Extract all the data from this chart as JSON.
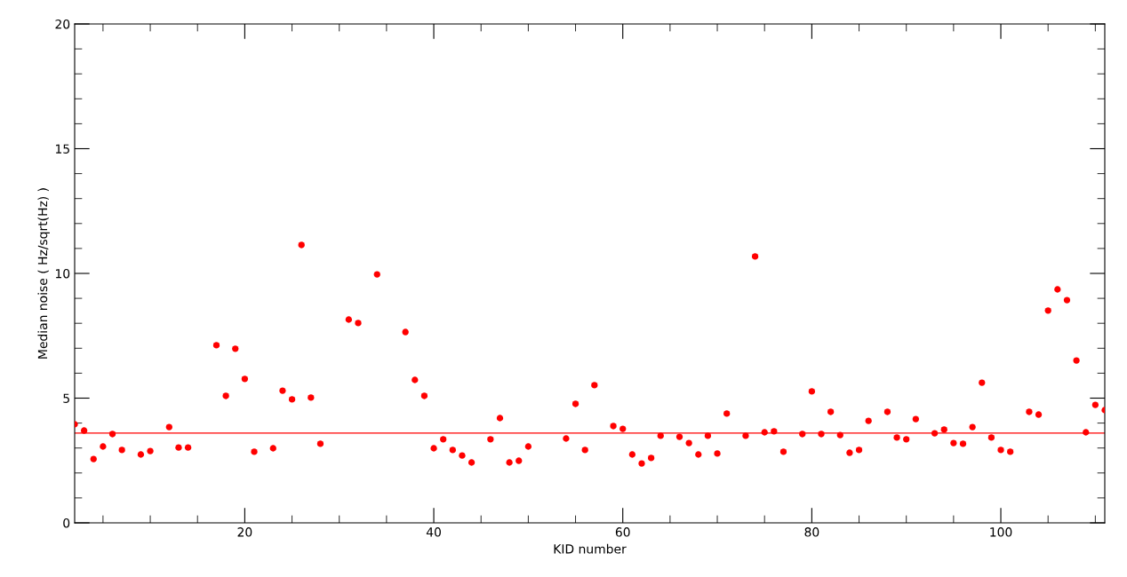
{
  "chart_data": {
    "type": "scatter",
    "xlabel": "KID number",
    "ylabel": "Median noise ( Hz/sqrt(Hz) )",
    "xlim": [
      2,
      111
    ],
    "ylim": [
      0,
      20
    ],
    "xticks": [
      20,
      40,
      60,
      80,
      100
    ],
    "yticks": [
      0,
      5,
      10,
      15,
      20
    ],
    "marker": "circle",
    "series": [
      {
        "color": "#ff0000",
        "x": [
          2,
          3,
          4,
          5,
          6,
          7,
          9,
          10,
          12,
          13,
          14,
          17,
          18,
          19,
          20,
          21,
          23,
          24,
          25,
          26,
          27,
          28,
          31,
          32,
          34,
          37,
          38,
          39,
          40,
          41,
          42,
          43,
          44,
          46,
          47,
          48,
          49,
          50,
          54,
          55,
          56,
          57,
          59,
          60,
          61,
          62,
          63,
          64,
          66,
          67,
          68,
          69,
          70,
          71,
          73,
          74,
          75,
          76,
          77,
          79,
          80,
          81,
          82,
          83,
          84,
          85,
          86,
          88,
          89,
          90,
          91,
          93,
          94,
          95,
          96,
          97,
          98,
          99,
          100,
          101,
          103,
          104,
          105,
          106,
          107,
          108,
          109,
          110,
          111
        ],
        "values": [
          3.95,
          3.7,
          2.56,
          3.06,
          3.56,
          2.92,
          2.74,
          2.88,
          3.84,
          3.02,
          3.02,
          7.12,
          5.09,
          6.98,
          5.77,
          2.85,
          2.99,
          5.3,
          4.95,
          11.14,
          5.02,
          3.17,
          8.15,
          8.01,
          9.96,
          7.65,
          5.73,
          5.09,
          2.99,
          3.35,
          2.92,
          2.7,
          2.42,
          3.35,
          4.2,
          2.42,
          2.49,
          3.06,
          3.38,
          4.77,
          2.92,
          5.52,
          3.88,
          3.77,
          2.74,
          2.38,
          2.6,
          3.49,
          3.45,
          3.2,
          2.74,
          3.49,
          2.78,
          4.38,
          3.49,
          10.68,
          3.63,
          3.67,
          2.85,
          3.56,
          5.27,
          3.56,
          4.45,
          3.52,
          2.81,
          2.92,
          4.09,
          4.45,
          3.42,
          3.35,
          4.16,
          3.59,
          3.74,
          3.2,
          3.17,
          3.84,
          5.62,
          3.42,
          2.92,
          2.85,
          4.45,
          4.34,
          8.51,
          9.36,
          8.93,
          6.51,
          3.63,
          4.73,
          4.52
        ]
      }
    ],
    "ref_lines": [
      {
        "axis": "y",
        "value": 3.6,
        "color": "#ff0000",
        "line_style": "solid"
      }
    ]
  }
}
